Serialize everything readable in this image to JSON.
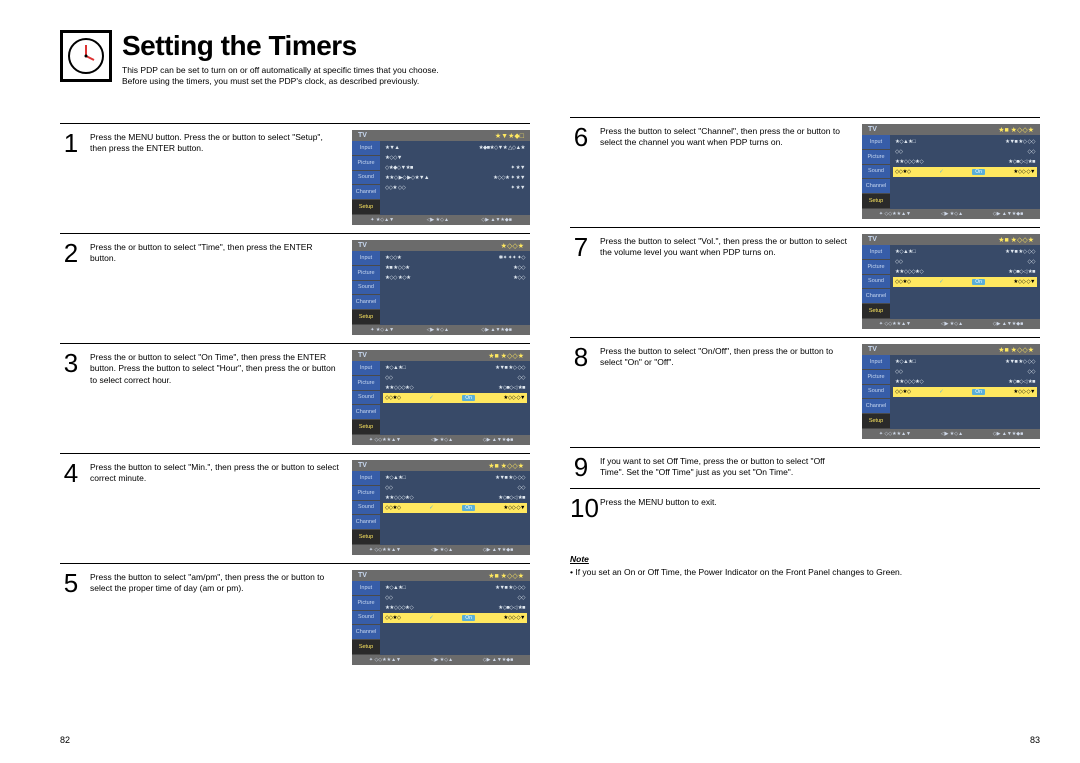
{
  "title": "Setting the Timers",
  "subtitle_line1": "This PDP can be set to turn on or off automatically at specific times that you choose.",
  "subtitle_line2": "Before using the timers, you must set the PDP's clock, as described previously.",
  "page_left_num": "82",
  "page_right_num": "83",
  "osd": {
    "tv_label": "TV",
    "tabs": [
      "Input",
      "Picture",
      "Sound",
      "Channel",
      "Setup"
    ],
    "foot": {
      "a": "✦ ★◇▲▼",
      "b": "◁▶ ★◇▲",
      "c": "◇▶ ▲▼★◆■"
    },
    "menu_setup": {
      "header_r": "★▼★◆□",
      "rows": [
        {
          "l": "★▼▲",
          "r": "★◆■★◇▼★ △◇▲★"
        },
        {
          "l": "★◇◇▼",
          "r": ""
        },
        {
          "l": "◇★◆◇▼★■",
          "r": "✦   ★▼"
        },
        {
          "l": "★★◇ ▶◇ ▶◇★▼▲",
          "r": "★◇◇★   ✦   ★▼"
        },
        {
          "l": "◇◇★ ◇◇",
          "r": "✦   ★▼"
        }
      ]
    },
    "menu_time": {
      "header_r": "★◇◇★",
      "rows": [
        {
          "l": "★◇◇★",
          "r": "✱✦ ✦✦ ✦◇"
        },
        {
          "l": "★■ ★◇◇★",
          "r": "★◇◇"
        },
        {
          "l": "★◇◇ ★◇★",
          "r": "★◇◇"
        },
        {
          "l": "",
          "r": ""
        }
      ]
    },
    "menu_ontime": {
      "header_r": "★■   ★◇◇★",
      "rows": [
        {
          "l": "★◇▲★□",
          "r": "★▼■    ★◇ ◇◇"
        },
        {
          "l": "◇◇",
          "r": "◇◇"
        },
        {
          "l": "★★◇◇◇★◇",
          "r": "★◇■◇◁    ★■"
        },
        {
          "l": "◇◇★◇",
          "r": "★◇◇   ◇▼"
        }
      ],
      "foot_a": "✦ ◇◇★★▲▼"
    },
    "on_label": "On"
  },
  "steps_left": [
    {
      "n": "1",
      "text": "Press the MENU button. Press the      or      button to select \"Setup\", then press the ENTER button.",
      "menu": "setup"
    },
    {
      "n": "2",
      "text": "Press the      or      button to select \"Time\", then press the ENTER button.",
      "menu": "time"
    },
    {
      "n": "3",
      "text": "Press the      or      button to select \"On Time\", then press the ENTER button.\nPress the      button to select \"Hour\", then press the      or      button to select correct hour.",
      "menu": "ontime"
    },
    {
      "n": "4",
      "text": "Press the      button to select \"Min.\", then press the      or      button to select correct minute.",
      "menu": "ontime"
    },
    {
      "n": "5",
      "text": "Press the      button to select \"am/pm\", then press the      or      button to select the proper time of day (am or pm).",
      "menu": "ontime"
    }
  ],
  "steps_right": [
    {
      "n": "6",
      "text": "Press the      button to select \"Channel\", then press the      or      button to select the channel you want when PDP turns on.",
      "menu": "ontime"
    },
    {
      "n": "7",
      "text": "Press the      button to select \"Vol.\", then press the      or      button to select the volume level you want when PDP turns on.",
      "menu": "ontime"
    },
    {
      "n": "8",
      "text": "Press the      button to select \"On/Off\", then press the      or      button to select \"On\" or \"Off\".",
      "menu": "ontime"
    },
    {
      "n": "9",
      "text": "If you want to set Off Time, press the       or       button to select \"Off Time\". Set the \"Off Time\" just as you set \"On Time\".",
      "menu": ""
    },
    {
      "n": "10",
      "text": "Press the MENU button to exit.",
      "menu": ""
    }
  ],
  "note": {
    "title": "Note",
    "body": "•  If you set an On or Off Time, the Power Indicator on the Front Panel changes to Green."
  }
}
